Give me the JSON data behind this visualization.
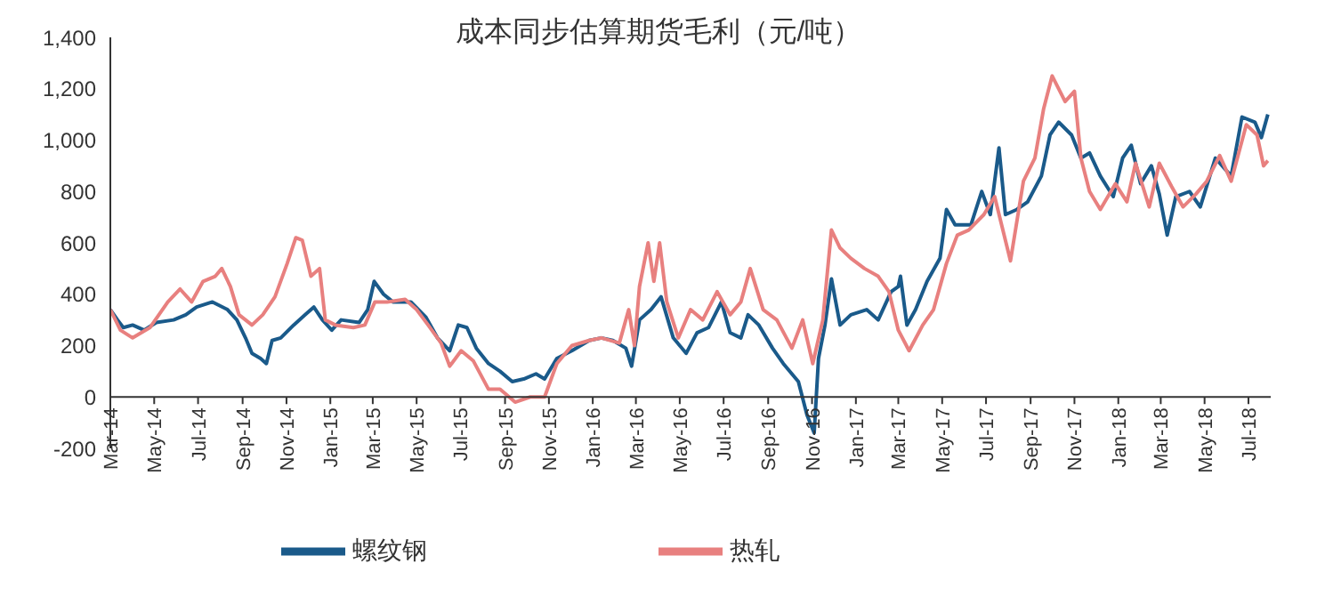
{
  "chart_data": {
    "type": "line",
    "title": "成本同步估算期货毛利（元/吨）",
    "xlim": [
      "2014-03-01",
      "2018-08-01"
    ],
    "xticks": [
      {
        "value": "2014-03",
        "label": "Mar-14"
      },
      {
        "value": "2014-05",
        "label": "May-14"
      },
      {
        "value": "2014-07",
        "label": "Jul-14"
      },
      {
        "value": "2014-09",
        "label": "Sep-14"
      },
      {
        "value": "2014-11",
        "label": "Nov-14"
      },
      {
        "value": "2015-01",
        "label": "Jan-15"
      },
      {
        "value": "2015-03",
        "label": "Mar-15"
      },
      {
        "value": "2015-05",
        "label": "May-15"
      },
      {
        "value": "2015-07",
        "label": "Jul-15"
      },
      {
        "value": "2015-09",
        "label": "Sep-15"
      },
      {
        "value": "2015-11",
        "label": "Nov-15"
      },
      {
        "value": "2016-01",
        "label": "Jan-16"
      },
      {
        "value": "2016-03",
        "label": "Mar-16"
      },
      {
        "value": "2016-05",
        "label": "May-16"
      },
      {
        "value": "2016-07",
        "label": "Jul-16"
      },
      {
        "value": "2016-09",
        "label": "Sep-16"
      },
      {
        "value": "2016-11",
        "label": "Nov-16"
      },
      {
        "value": "2017-01",
        "label": "Jan-17"
      },
      {
        "value": "2017-03",
        "label": "Mar-17"
      },
      {
        "value": "2017-05",
        "label": "May-17"
      },
      {
        "value": "2017-07",
        "label": "Jul-17"
      },
      {
        "value": "2017-09",
        "label": "Sep-17"
      },
      {
        "value": "2017-11",
        "label": "Nov-17"
      },
      {
        "value": "2018-01",
        "label": "Jan-18"
      },
      {
        "value": "2018-03",
        "label": "Mar-18"
      },
      {
        "value": "2018-05",
        "label": "May-18"
      },
      {
        "value": "2018-07",
        "label": "Jul-18"
      }
    ],
    "ylim": [
      -200,
      1400
    ],
    "yticks": [
      -200,
      0,
      200,
      400,
      600,
      800,
      {
        "value": 1000,
        "label": "1,000"
      },
      {
        "value": 1200,
        "label": "1,200"
      },
      {
        "value": 1400,
        "label": "1,400"
      }
    ],
    "legend": "bottom",
    "marker": "none",
    "line_style": "solid",
    "series": [
      {
        "name": "螺纹钢",
        "color": "#1a5a8a",
        "x": [
          "2014-03-01",
          "2014-03-11",
          "2014-03-19",
          "2014-04-01",
          "2014-04-17",
          "2014-05-04",
          "2014-05-28",
          "2014-06-14",
          "2014-06-29",
          "2014-07-21",
          "2014-08-11",
          "2014-08-24",
          "2014-09-05",
          "2014-09-14",
          "2014-09-26",
          "2014-10-04",
          "2014-10-12",
          "2014-10-24",
          "2014-11-11",
          "2014-11-27",
          "2014-12-09",
          "2014-12-21",
          "2015-01-03",
          "2015-01-16",
          "2015-02-10",
          "2015-02-22",
          "2015-03-03",
          "2015-03-16",
          "2015-03-29",
          "2015-04-23",
          "2015-05-14",
          "2015-05-30",
          "2015-06-16",
          "2015-06-28",
          "2015-07-10",
          "2015-07-23",
          "2015-08-09",
          "2015-08-25",
          "2015-09-11",
          "2015-09-27",
          "2015-10-14",
          "2015-10-26",
          "2015-11-12",
          "2015-12-03",
          "2015-12-27",
          "2016-01-13",
          "2016-01-29",
          "2016-02-16",
          "2016-02-24",
          "2016-03-06",
          "2016-03-22",
          "2016-04-05",
          "2016-04-22",
          "2016-05-10",
          "2016-05-25",
          "2016-06-10",
          "2016-06-28",
          "2016-07-10",
          "2016-07-25",
          "2016-08-04",
          "2016-08-19",
          "2016-09-07",
          "2016-09-22",
          "2016-10-13",
          "2016-10-25",
          "2016-11-04",
          "2016-11-10",
          "2016-11-19",
          "2016-11-28",
          "2016-12-10",
          "2016-12-25",
          "2017-01-16",
          "2017-02-01",
          "2017-02-19",
          "2017-03-01",
          "2017-03-04",
          "2017-03-13",
          "2017-03-25",
          "2017-04-10",
          "2017-04-28",
          "2017-05-07",
          "2017-05-19",
          "2017-06-10",
          "2017-06-25",
          "2017-07-07",
          "2017-07-19",
          "2017-07-28",
          "2017-08-13",
          "2017-08-28",
          "2017-09-16",
          "2017-09-28",
          "2017-10-10",
          "2017-10-28",
          "2017-11-10",
          "2017-11-22",
          "2017-12-07",
          "2017-12-25",
          "2018-01-07",
          "2018-01-19",
          "2018-02-01",
          "2018-02-16",
          "2018-02-27",
          "2018-03-10",
          "2018-03-22",
          "2018-04-10",
          "2018-04-25",
          "2018-05-16",
          "2018-06-07",
          "2018-06-22",
          "2018-07-10",
          "2018-07-19",
          "2018-07-28"
        ],
        "values": [
          340,
          300,
          270,
          280,
          260,
          290,
          300,
          320,
          350,
          370,
          340,
          300,
          230,
          170,
          150,
          130,
          220,
          230,
          280,
          320,
          350,
          300,
          260,
          300,
          290,
          340,
          450,
          400,
          370,
          370,
          310,
          230,
          180,
          280,
          270,
          190,
          130,
          100,
          60,
          70,
          90,
          70,
          150,
          180,
          220,
          230,
          220,
          190,
          120,
          300,
          340,
          390,
          230,
          170,
          250,
          270,
          370,
          250,
          230,
          320,
          280,
          190,
          130,
          60,
          -70,
          -140,
          150,
          280,
          460,
          280,
          320,
          340,
          300,
          410,
          430,
          470,
          280,
          340,
          450,
          540,
          730,
          670,
          670,
          800,
          710,
          970,
          710,
          730,
          760,
          860,
          1020,
          1070,
          1020,
          930,
          950,
          860,
          780,
          930,
          980,
          830,
          900,
          790,
          630,
          780,
          800,
          740,
          930,
          860,
          1090,
          1070,
          1010,
          1100
        ]
      },
      {
        "name": "热轧",
        "color": "#e8807f",
        "x": [
          "2014-03-01",
          "2014-03-15",
          "2014-04-01",
          "2014-04-25",
          "2014-05-20",
          "2014-06-06",
          "2014-06-22",
          "2014-07-08",
          "2014-07-25",
          "2014-08-03",
          "2014-08-15",
          "2014-08-27",
          "2014-09-14",
          "2014-09-29",
          "2014-10-16",
          "2014-11-02",
          "2014-11-14",
          "2014-11-23",
          "2014-12-05",
          "2014-12-17",
          "2014-12-25",
          "2015-01-08",
          "2015-02-02",
          "2015-02-18",
          "2015-03-04",
          "2015-03-21",
          "2015-04-15",
          "2015-05-01",
          "2015-05-17",
          "2015-06-04",
          "2015-06-16",
          "2015-07-02",
          "2015-07-19",
          "2015-08-09",
          "2015-08-25",
          "2015-09-15",
          "2015-10-06",
          "2015-10-26",
          "2015-11-12",
          "2015-12-03",
          "2015-12-27",
          "2016-01-13",
          "2016-02-07",
          "2016-02-20",
          "2016-02-28",
          "2016-03-06",
          "2016-03-18",
          "2016-03-26",
          "2016-04-03",
          "2016-04-13",
          "2016-04-29",
          "2016-05-16",
          "2016-06-02",
          "2016-06-22",
          "2016-07-10",
          "2016-07-25",
          "2016-08-07",
          "2016-08-25",
          "2016-09-13",
          "2016-10-04",
          "2016-10-19",
          "2016-11-02",
          "2016-11-16",
          "2016-11-28",
          "2016-12-10",
          "2016-12-25",
          "2017-01-13",
          "2017-02-01",
          "2017-02-16",
          "2017-03-01",
          "2017-03-16",
          "2017-04-04",
          "2017-04-19",
          "2017-05-07",
          "2017-05-22",
          "2017-06-07",
          "2017-06-28",
          "2017-07-13",
          "2017-08-04",
          "2017-08-22",
          "2017-09-07",
          "2017-09-19",
          "2017-10-01",
          "2017-10-19",
          "2017-11-01",
          "2017-11-10",
          "2017-11-22",
          "2017-12-07",
          "2017-12-28",
          "2018-01-13",
          "2018-01-25",
          "2018-02-13",
          "2018-02-27",
          "2018-03-16",
          "2018-04-01",
          "2018-04-19",
          "2018-05-04",
          "2018-05-22",
          "2018-06-07",
          "2018-06-28",
          "2018-07-13",
          "2018-07-22",
          "2018-07-28"
        ],
        "values": [
          340,
          260,
          230,
          270,
          370,
          420,
          370,
          450,
          470,
          500,
          430,
          320,
          280,
          320,
          390,
          520,
          620,
          610,
          470,
          500,
          300,
          280,
          270,
          280,
          370,
          370,
          380,
          340,
          280,
          210,
          120,
          180,
          140,
          30,
          30,
          -20,
          0,
          0,
          130,
          200,
          220,
          230,
          210,
          340,
          200,
          430,
          600,
          450,
          600,
          370,
          230,
          340,
          300,
          410,
          320,
          370,
          500,
          340,
          300,
          190,
          300,
          130,
          300,
          650,
          580,
          540,
          500,
          470,
          410,
          260,
          180,
          280,
          340,
          520,
          630,
          650,
          710,
          780,
          530,
          840,
          930,
          1120,
          1250,
          1150,
          1190,
          930,
          800,
          730,
          830,
          760,
          910,
          740,
          910,
          820,
          740,
          790,
          840,
          940,
          840,
          1060,
          1020,
          900,
          920
        ]
      }
    ]
  }
}
